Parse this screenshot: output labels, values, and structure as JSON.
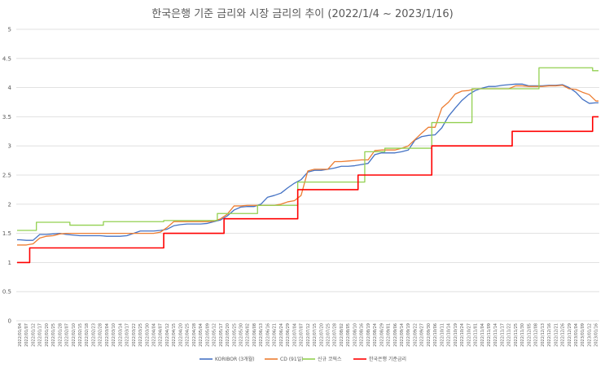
{
  "chart_data": {
    "type": "line",
    "title": "한국은행 기준 금리와 시장 금리의 추이 (2022/1/4 ~ 2023/1/16)",
    "xlabel": "",
    "ylabel": "",
    "ylim": [
      0,
      5
    ],
    "yticks": [
      "0",
      "0.5",
      "1",
      "1.5",
      "2",
      "2.5",
      "3",
      "3.5",
      "4",
      "4.5",
      "5"
    ],
    "grid": true,
    "legend_position": "bottom",
    "x": [
      "2022/01/04",
      "2022/01/07",
      "2022/01/12",
      "2022/01/17",
      "2022/01/20",
      "2022/01/25",
      "2022/01/28",
      "2022/02/07",
      "2022/02/10",
      "2022/02/15",
      "2022/02/18",
      "2022/02/23",
      "2022/02/28",
      "2022/03/04",
      "2022/03/10",
      "2022/03/14",
      "2022/03/17",
      "2022/03/22",
      "2022/03/25",
      "2022/03/30",
      "2022/04/04",
      "2022/04/07",
      "2022/04/12",
      "2022/04/15",
      "2022/04/20",
      "2022/04/25",
      "2022/04/28",
      "2022/05/04",
      "2022/05/09",
      "2022/05/12",
      "2022/05/17",
      "2022/05/20",
      "2022/05/25",
      "2022/05/30",
      "2022/06/02",
      "2022/06/08",
      "2022/06/13",
      "2022/06/16",
      "2022/06/21",
      "2022/06/24",
      "2022/06/29",
      "2022/07/04",
      "2022/07/07",
      "2022/07/12",
      "2022/07/15",
      "2022/07/20",
      "2022/07/25",
      "2022/07/28",
      "2022/08/02",
      "2022/08/05",
      "2022/08/10",
      "2022/08/16",
      "2022/08/19",
      "2022/08/24",
      "2022/08/29",
      "2022/09/01",
      "2022/09/06",
      "2022/09/14",
      "2022/09/19",
      "2022/09/22",
      "2022/09/27",
      "2022/09/30",
      "2022/10/06",
      "2022/10/11",
      "2022/10/14",
      "2022/10/19",
      "2022/10/24",
      "2022/10/27",
      "2022/11/01",
      "2022/11/04",
      "2022/11/09",
      "2022/11/14",
      "2022/11/17",
      "2022/11/22",
      "2022/11/25",
      "2022/11/30",
      "2022/12/05",
      "2022/12/08",
      "2022/12/13",
      "2022/12/16",
      "2022/12/21",
      "2022/12/26",
      "2022/12/29",
      "2023/01/04",
      "2023/01/09",
      "2023/01/12",
      "2023/01/16"
    ],
    "xticks": [
      "2022/01/04",
      "2022/01/07",
      "2022/01/12",
      "2022/01/17",
      "2022/01/20",
      "2022/01/25",
      "2022/01/28",
      "2022/02/07",
      "2022/02/10",
      "2022/02/15",
      "2022/02/18",
      "2022/02/23",
      "2022/02/28",
      "2022/03/04",
      "2022/03/10",
      "2022/03/14",
      "2022/03/17",
      "2022/03/22",
      "2022/03/25",
      "2022/03/30",
      "2022/04/04",
      "2022/04/07",
      "2022/04/12",
      "2022/04/15",
      "2022/04/20",
      "2022/04/25",
      "2022/04/28",
      "2022/05/04",
      "2022/05/09",
      "2022/05/12",
      "2022/05/17",
      "2022/05/20",
      "2022/05/25",
      "2022/05/30",
      "2022/06/02",
      "2022/06/08",
      "2022/06/13",
      "2022/06/16",
      "2022/06/21",
      "2022/06/24",
      "2022/06/29",
      "2022/07/04",
      "2022/07/07",
      "2022/07/12",
      "2022/07/15",
      "2022/07/20",
      "2022/07/25",
      "2022/07/28",
      "2022/08/02",
      "2022/08/05",
      "2022/08/10",
      "2022/08/16",
      "2022/08/19",
      "2022/08/24",
      "2022/08/29",
      "2022/09/01",
      "2022/09/06",
      "2022/09/14",
      "2022/09/19",
      "2022/09/22",
      "2022/09/27",
      "2022/09/30",
      "2022/10/06",
      "2022/10/11",
      "2022/10/14",
      "2022/10/19",
      "2022/10/24",
      "2022/10/27",
      "2022/11/01",
      "2022/11/04",
      "2022/11/09",
      "2022/11/14",
      "2022/11/17",
      "2022/11/22",
      "2022/11/25",
      "2022/11/30",
      "2022/12/05",
      "2022/12/08",
      "2022/12/13",
      "2022/12/16",
      "2022/12/21",
      "2022/12/26",
      "2022/12/29",
      "2023/01/04",
      "2023/01/09",
      "2023/01/12",
      "2023/01/16"
    ],
    "series": [
      {
        "name": "KORIBOR (3개월)",
        "color": "#4472C4",
        "values": [
          1.39,
          1.38,
          1.38,
          1.48,
          1.48,
          1.49,
          1.5,
          1.48,
          1.47,
          1.46,
          1.46,
          1.46,
          1.46,
          1.45,
          1.45,
          1.45,
          1.46,
          1.5,
          1.54,
          1.54,
          1.54,
          1.55,
          1.57,
          1.63,
          1.65,
          1.66,
          1.66,
          1.66,
          1.67,
          1.7,
          1.73,
          1.8,
          1.9,
          1.95,
          1.96,
          1.96,
          2.0,
          2.12,
          2.15,
          2.19,
          2.28,
          2.36,
          2.42,
          2.55,
          2.58,
          2.58,
          2.6,
          2.62,
          2.65,
          2.65,
          2.66,
          2.68,
          2.7,
          2.85,
          2.88,
          2.88,
          2.88,
          2.9,
          2.93,
          3.1,
          3.16,
          3.18,
          3.19,
          3.31,
          3.51,
          3.65,
          3.78,
          3.88,
          3.95,
          3.99,
          4.02,
          4.02,
          4.04,
          4.05,
          4.06,
          4.06,
          4.03,
          4.03,
          4.03,
          4.04,
          4.04,
          4.05,
          4.0,
          3.92,
          3.8,
          3.73,
          3.74
        ]
      },
      {
        "name": "CD (91일)",
        "color": "#ED7D31",
        "values": [
          1.3,
          1.3,
          1.32,
          1.42,
          1.45,
          1.46,
          1.49,
          1.5,
          1.5,
          1.5,
          1.5,
          1.5,
          1.5,
          1.5,
          1.5,
          1.5,
          1.5,
          1.5,
          1.5,
          1.5,
          1.5,
          1.52,
          1.6,
          1.7,
          1.7,
          1.7,
          1.7,
          1.7,
          1.7,
          1.71,
          1.75,
          1.83,
          1.97,
          1.97,
          1.98,
          1.98,
          1.98,
          1.98,
          1.98,
          2.0,
          2.04,
          2.06,
          2.15,
          2.57,
          2.6,
          2.6,
          2.6,
          2.73,
          2.73,
          2.74,
          2.75,
          2.76,
          2.76,
          2.92,
          2.93,
          2.93,
          2.93,
          2.96,
          3.0,
          3.11,
          3.22,
          3.32,
          3.32,
          3.65,
          3.75,
          3.89,
          3.94,
          3.95,
          3.98,
          3.98,
          3.98,
          3.98,
          3.98,
          3.98,
          4.03,
          4.03,
          4.02,
          4.02,
          4.02,
          4.03,
          4.03,
          4.04,
          3.98,
          3.97,
          3.92,
          3.88,
          3.77
        ]
      },
      {
        "name": "신규 코픽스",
        "color": "#92D050",
        "values": [
          1.55,
          1.55,
          1.55,
          1.69,
          1.69,
          1.69,
          1.69,
          1.69,
          1.64,
          1.64,
          1.64,
          1.64,
          1.64,
          1.7,
          1.7,
          1.7,
          1.7,
          1.7,
          1.7,
          1.7,
          1.7,
          1.7,
          1.72,
          1.72,
          1.72,
          1.72,
          1.72,
          1.72,
          1.72,
          1.72,
          1.84,
          1.84,
          1.84,
          1.84,
          1.84,
          1.84,
          1.98,
          1.98,
          1.98,
          1.98,
          1.98,
          1.98,
          2.38,
          2.38,
          2.38,
          2.38,
          2.38,
          2.38,
          2.38,
          2.38,
          2.38,
          2.38,
          2.9,
          2.9,
          2.9,
          2.96,
          2.96,
          2.96,
          2.96,
          2.96,
          2.96,
          2.96,
          3.4,
          3.4,
          3.4,
          3.4,
          3.4,
          3.4,
          3.98,
          3.98,
          3.98,
          3.98,
          3.98,
          3.98,
          3.98,
          3.98,
          3.98,
          3.98,
          4.34,
          4.34,
          4.34,
          4.34,
          4.34,
          4.34,
          4.34,
          4.34,
          4.29
        ]
      },
      {
        "name": "한국은행 기준금리",
        "color": "#FF0000",
        "values": [
          1.0,
          1.0,
          1.25,
          1.25,
          1.25,
          1.25,
          1.25,
          1.25,
          1.25,
          1.25,
          1.25,
          1.25,
          1.25,
          1.25,
          1.25,
          1.25,
          1.25,
          1.25,
          1.25,
          1.25,
          1.25,
          1.25,
          1.5,
          1.5,
          1.5,
          1.5,
          1.5,
          1.5,
          1.5,
          1.5,
          1.5,
          1.75,
          1.75,
          1.75,
          1.75,
          1.75,
          1.75,
          1.75,
          1.75,
          1.75,
          1.75,
          1.75,
          2.25,
          2.25,
          2.25,
          2.25,
          2.25,
          2.25,
          2.25,
          2.25,
          2.25,
          2.5,
          2.5,
          2.5,
          2.5,
          2.5,
          2.5,
          2.5,
          2.5,
          2.5,
          2.5,
          2.5,
          3.0,
          3.0,
          3.0,
          3.0,
          3.0,
          3.0,
          3.0,
          3.0,
          3.0,
          3.0,
          3.0,
          3.0,
          3.25,
          3.25,
          3.25,
          3.25,
          3.25,
          3.25,
          3.25,
          3.25,
          3.25,
          3.25,
          3.25,
          3.25,
          3.5
        ]
      }
    ]
  }
}
